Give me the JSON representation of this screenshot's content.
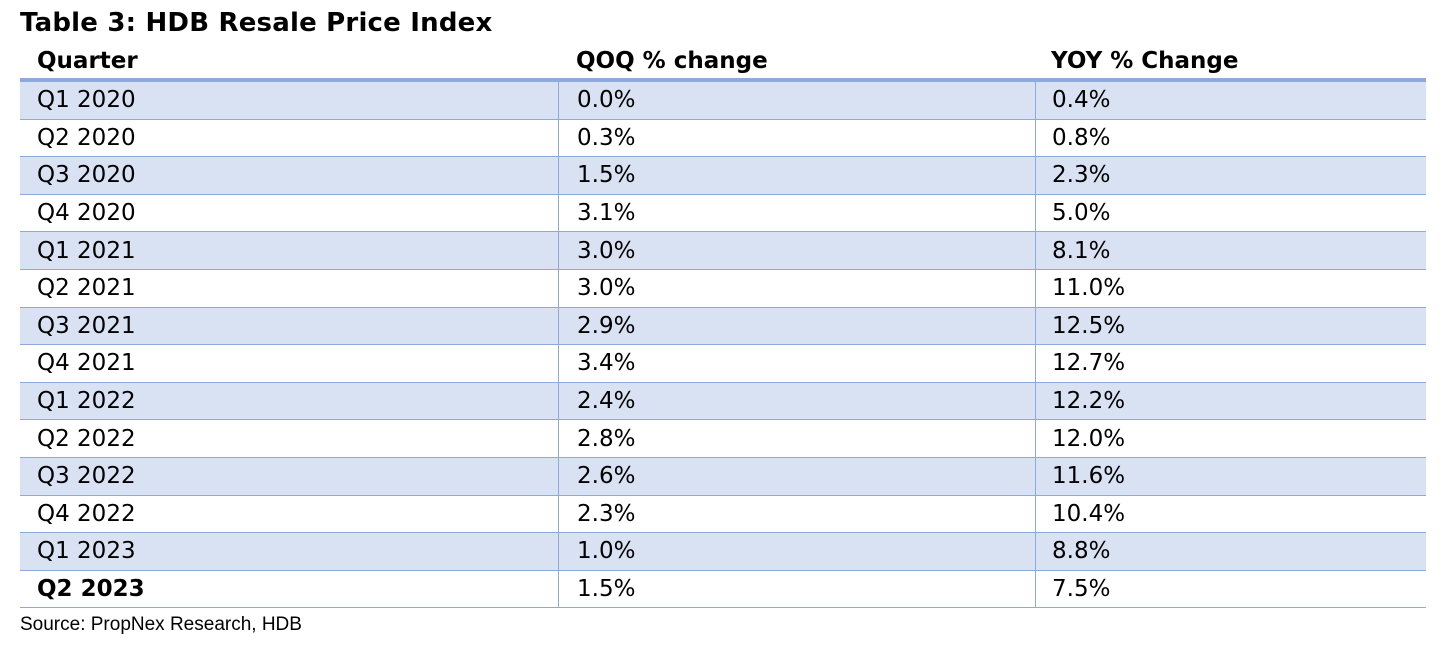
{
  "title": "Table 3: HDB Resale Price Index",
  "columns": [
    "Quarter",
    "QOQ % change",
    "YOY % Change"
  ],
  "rows": [
    {
      "quarter": "Q1 2020",
      "qoq": "0.0%",
      "yoy": "0.4%"
    },
    {
      "quarter": "Q2 2020",
      "qoq": "0.3%",
      "yoy": "0.8%"
    },
    {
      "quarter": "Q3 2020",
      "qoq": "1.5%",
      "yoy": "2.3%"
    },
    {
      "quarter": "Q4 2020",
      "qoq": "3.1%",
      "yoy": "5.0%"
    },
    {
      "quarter": "Q1 2021",
      "qoq": "3.0%",
      "yoy": "8.1%"
    },
    {
      "quarter": "Q2 2021",
      "qoq": "3.0%",
      "yoy": "11.0%"
    },
    {
      "quarter": "Q3 2021",
      "qoq": "2.9%",
      "yoy": "12.5%"
    },
    {
      "quarter": "Q4 2021",
      "qoq": "3.4%",
      "yoy": "12.7%"
    },
    {
      "quarter": "Q1 2022",
      "qoq": "2.4%",
      "yoy": "12.2%"
    },
    {
      "quarter": "Q2 2022",
      "qoq": "2.8%",
      "yoy": "12.0%"
    },
    {
      "quarter": "Q3 2022",
      "qoq": "2.6%",
      "yoy": "11.6%"
    },
    {
      "quarter": "Q4 2022",
      "qoq": "2.3%",
      "yoy": "10.4%"
    },
    {
      "quarter": "Q1 2023",
      "qoq": "1.0%",
      "yoy": "8.8%"
    },
    {
      "quarter": "Q2 2023",
      "qoq": "1.5%",
      "yoy": "7.5%"
    }
  ],
  "source": "Source: PropNex Research, HDB",
  "colors": {
    "band": "#d9e2f3",
    "rule": "#8eaadb"
  }
}
